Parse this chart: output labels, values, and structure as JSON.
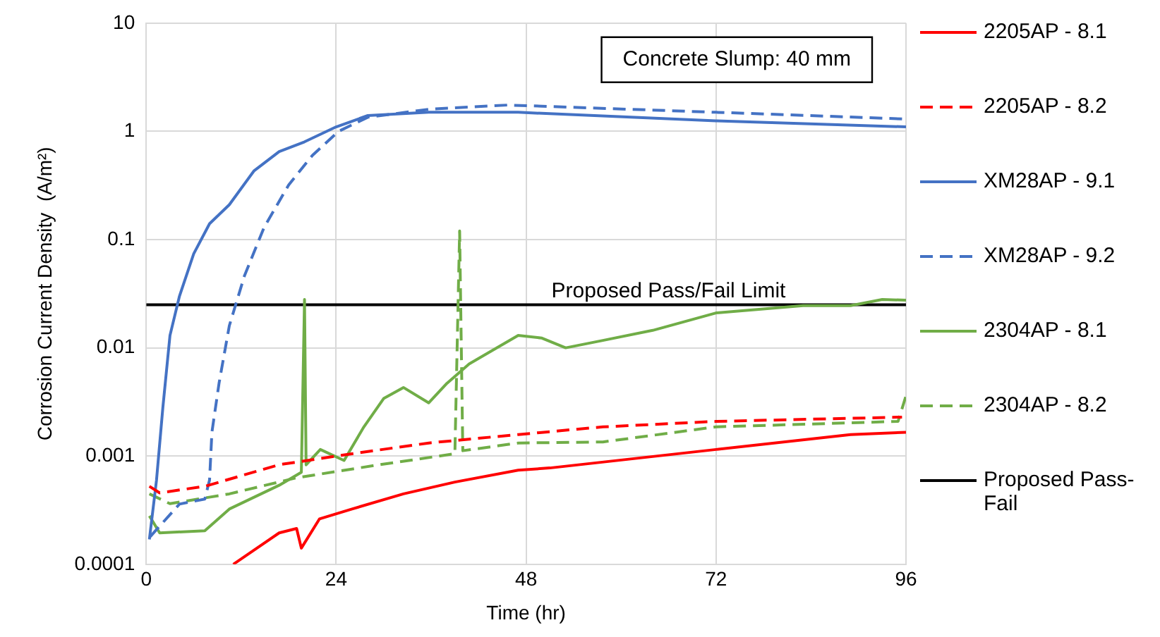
{
  "chart_data": {
    "type": "line",
    "xlabel": "Time (hr)",
    "ylabel": "Corrosion Current Density  (A/m²)",
    "log": "y",
    "grid": true,
    "legend": "right",
    "marker": "none",
    "xlim": [
      0,
      96
    ],
    "xticks": [
      0,
      24,
      48,
      72,
      96
    ],
    "ylim": [
      0.0001,
      10
    ],
    "yticks": [
      0.0001,
      0.001,
      0.01,
      0.1,
      1,
      10
    ],
    "annotations": [
      "Concrete Slump: 40 mm",
      {
        "text": "Proposed Pass/Fail Limit",
        "x": 66,
        "y": 0.025
      }
    ],
    "series": [
      {
        "name": "2205AP - 8.1",
        "color": "#ff0000",
        "line_style": "solid",
        "x": [
          11,
          16.8,
          19,
          19.6,
          21.9,
          26,
          32.5,
          39,
          47,
          51,
          72,
          89,
          96
        ],
        "values": [
          0.0001,
          0.000195,
          0.000214,
          0.000141,
          0.000263,
          0.000324,
          0.000447,
          0.000575,
          0.000741,
          0.000776,
          0.00115,
          0.00158,
          0.00166
        ]
      },
      {
        "name": "2205AP - 8.2",
        "color": "#ff0000",
        "line_style": "dashed",
        "x": [
          0.4,
          1.7,
          7.4,
          16.8,
          26,
          35.7,
          47,
          57.7,
          72,
          95.5
        ],
        "values": [
          0.000525,
          0.000457,
          0.000525,
          0.000832,
          0.00105,
          0.00132,
          0.00158,
          0.00186,
          0.00209,
          0.00229
        ]
      },
      {
        "name": "XM28AP - 9.1",
        "color": "#4472c4",
        "line_style": "solid",
        "x": [
          0.4,
          1.3,
          2.1,
          3,
          4.2,
          6,
          8,
          10.5,
          13.6,
          16.8,
          20,
          24,
          28,
          35.7,
          47,
          72,
          96
        ],
        "values": [
          0.00017,
          0.0006,
          0.0028,
          0.013,
          0.03,
          0.074,
          0.14,
          0.21,
          0.43,
          0.65,
          0.8,
          1.1,
          1.4,
          1.5,
          1.5,
          1.25,
          1.1
        ]
      },
      {
        "name": "XM28AP - 9.2",
        "color": "#4472c4",
        "line_style": "dashed",
        "x": [
          0.5,
          4.2,
          7.4,
          8,
          8.3,
          9.2,
          10.5,
          12.4,
          14.9,
          18,
          21,
          24.3,
          28,
          35.7,
          45.7,
          72,
          96
        ],
        "values": [
          0.00018,
          0.00036,
          0.0004,
          0.0006,
          0.00166,
          0.0047,
          0.016,
          0.046,
          0.13,
          0.32,
          0.6,
          1,
          1.35,
          1.6,
          1.75,
          1.5,
          1.3
        ]
      },
      {
        "name": "2304AP - 8.1",
        "color": "#70ad47",
        "line_style": "solid",
        "x": [
          0.4,
          1.7,
          7.4,
          10.5,
          16.8,
          19.6,
          20,
          20.2,
          22,
          25,
          27.5,
          30,
          32.5,
          35.7,
          38,
          40.8,
          47,
          50,
          53,
          57.7,
          64,
          72,
          83,
          89,
          93,
          96
        ],
        "values": [
          0.00028,
          0.000195,
          0.000204,
          0.000324,
          0.000537,
          0.000708,
          0.028,
          0.00083,
          0.00115,
          0.00091,
          0.00186,
          0.0034,
          0.0043,
          0.0031,
          0.0047,
          0.0071,
          0.013,
          0.0123,
          0.01,
          0.0117,
          0.0145,
          0.021,
          0.0245,
          0.0245,
          0.028,
          0.0275
        ]
      },
      {
        "name": "2304AP - 8.2",
        "color": "#70ad47",
        "line_style": "dashed",
        "x": [
          0.4,
          3,
          10.5,
          19,
          29.4,
          39,
          39.6,
          40,
          47,
          57.7,
          72,
          95,
          96
        ],
        "values": [
          0.000447,
          0.000363,
          0.000447,
          0.00063,
          0.00083,
          0.00105,
          0.12,
          0.00112,
          0.00132,
          0.00135,
          0.00186,
          0.00209,
          0.0036
        ]
      },
      {
        "name": "Proposed Pass-Fail",
        "color": "#000000",
        "line_style": "solid",
        "x": [
          0,
          96
        ],
        "values": [
          0.025,
          0.025
        ]
      }
    ]
  }
}
